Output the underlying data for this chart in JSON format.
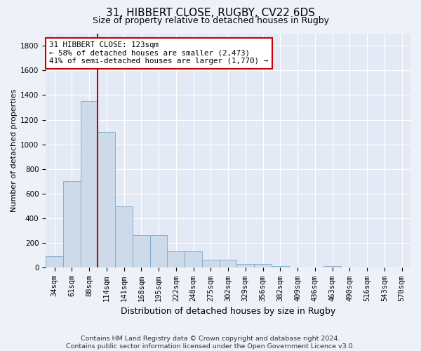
{
  "title1": "31, HIBBERT CLOSE, RUGBY, CV22 6DS",
  "title2": "Size of property relative to detached houses in Rugby",
  "xlabel": "Distribution of detached houses by size in Rugby",
  "ylabel": "Number of detached properties",
  "categories": [
    "34sqm",
    "61sqm",
    "88sqm",
    "114sqm",
    "141sqm",
    "168sqm",
    "195sqm",
    "222sqm",
    "248sqm",
    "275sqm",
    "302sqm",
    "329sqm",
    "356sqm",
    "382sqm",
    "409sqm",
    "436sqm",
    "463sqm",
    "490sqm",
    "516sqm",
    "543sqm",
    "570sqm"
  ],
  "values": [
    95,
    700,
    1350,
    1100,
    500,
    265,
    265,
    135,
    135,
    65,
    65,
    30,
    30,
    15,
    2,
    2,
    15,
    2,
    2,
    2,
    2
  ],
  "bar_color": "#ccdaea",
  "bar_edge_color": "#7aaac8",
  "vline_color": "#cc0000",
  "vline_index": 3,
  "annotation_line1": "31 HIBBERT CLOSE: 123sqm",
  "annotation_line2": "← 58% of detached houses are smaller (2,473)",
  "annotation_line3": "41% of semi-detached houses are larger (1,770) →",
  "annotation_box_color": "#cc0000",
  "ylim": [
    0,
    1900
  ],
  "yticks": [
    0,
    200,
    400,
    600,
    800,
    1000,
    1200,
    1400,
    1600,
    1800
  ],
  "footer_line1": "Contains HM Land Registry data © Crown copyright and database right 2024.",
  "footer_line2": "Contains public sector information licensed under the Open Government Licence v3.0.",
  "bg_color": "#eef2f8",
  "plot_bg_color": "#e4eaf5",
  "grid_color": "#ffffff",
  "title1_fontsize": 11,
  "title2_fontsize": 9,
  "ylabel_fontsize": 8,
  "xlabel_fontsize": 9,
  "tick_fontsize": 7.5,
  "ann_fontsize": 7.8,
  "footer_fontsize": 6.8
}
